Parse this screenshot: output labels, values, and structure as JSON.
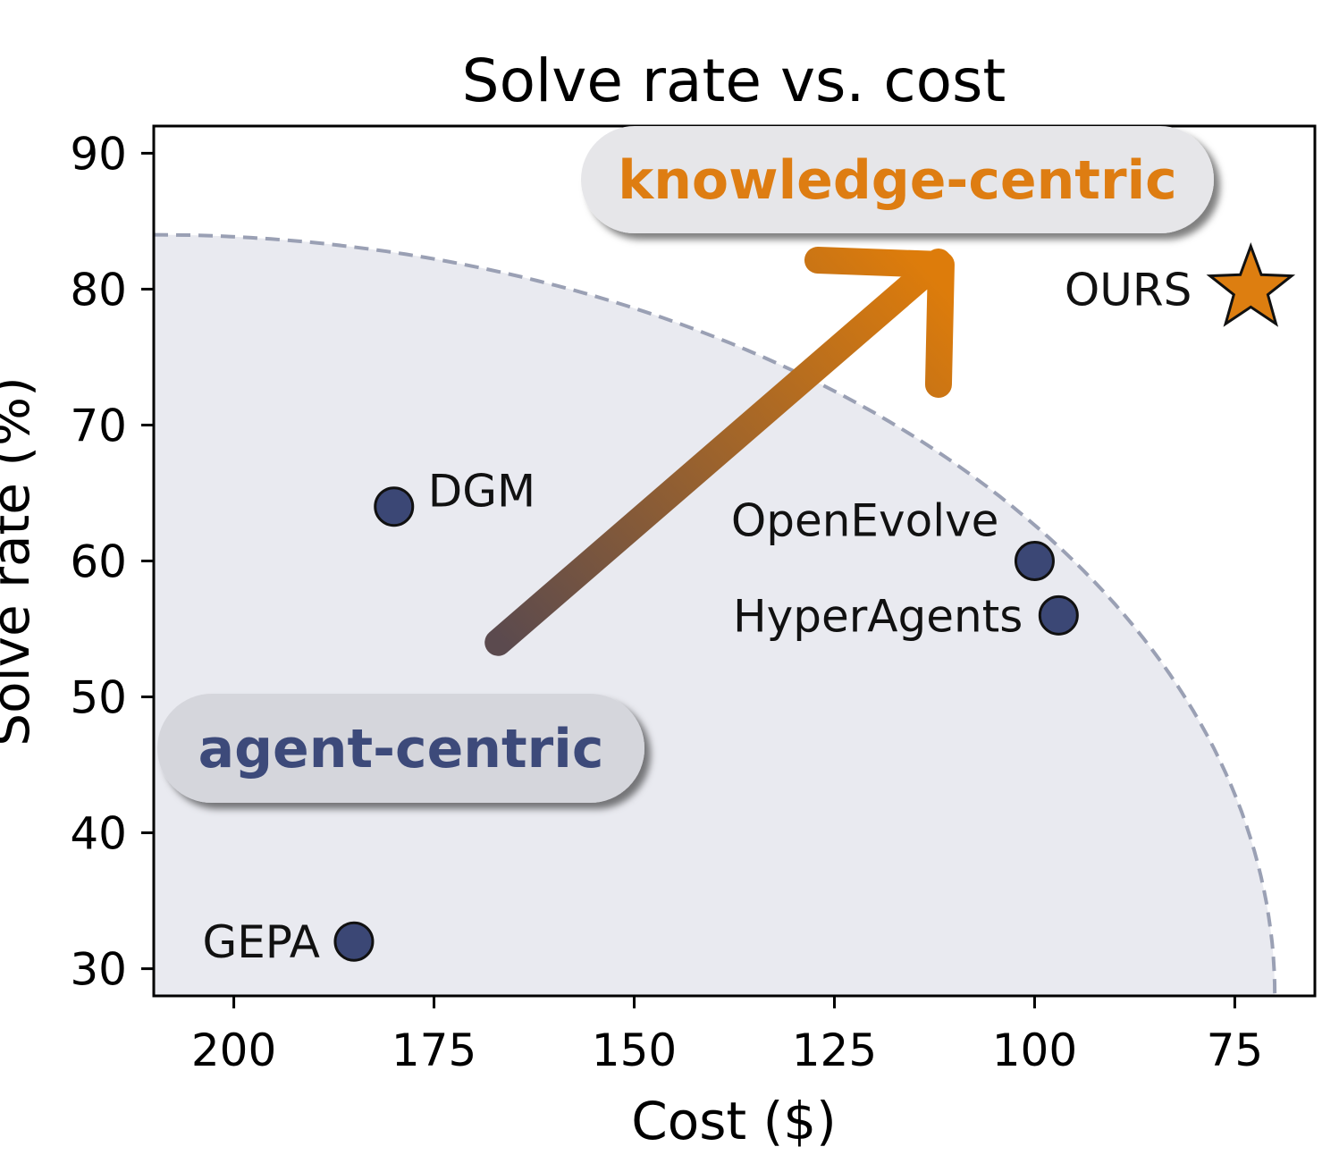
{
  "chart_data": {
    "type": "scatter",
    "title": "Solve rate vs. cost",
    "xlabel": "Cost ($)",
    "ylabel": "Solve rate (%)",
    "x_reversed": true,
    "xlim": [
      210,
      65
    ],
    "ylim": [
      28,
      92
    ],
    "xticks": [
      200,
      175,
      150,
      125,
      100,
      75
    ],
    "yticks": [
      30,
      40,
      50,
      60,
      70,
      80,
      90
    ],
    "grid": false,
    "points": [
      {
        "label": "DGM",
        "x": 180,
        "y": 64,
        "marker": "circle"
      },
      {
        "label": "OpenEvolve",
        "x": 100,
        "y": 60,
        "marker": "circle"
      },
      {
        "label": "HyperAgents",
        "x": 97,
        "y": 56,
        "marker": "circle"
      },
      {
        "label": "GEPA",
        "x": 185,
        "y": 32,
        "marker": "circle"
      },
      {
        "label": "OURS",
        "x": 73,
        "y": 80,
        "marker": "star"
      }
    ],
    "frontier": {
      "style": "dashed",
      "x0": 210,
      "y0": 84,
      "x_end": 70,
      "y_end": 28
    },
    "annotations": {
      "from_label": "agent-centric",
      "to_label": "knowledge-centric",
      "arrow_from": {
        "x": 167,
        "y": 54
      },
      "arrow_to": {
        "x": 112,
        "y": 82
      }
    },
    "colors": {
      "point_fill": "#3b4775",
      "star_fill": "#dd7e10",
      "region_fill": "#e9eaf0",
      "frontier": "#9aa0b4",
      "agent_text": "#3d4a7a",
      "knowledge_text": "#de7d12",
      "arrow_start": "#5b4a4e",
      "arrow_end": "#dd7c0b"
    }
  }
}
